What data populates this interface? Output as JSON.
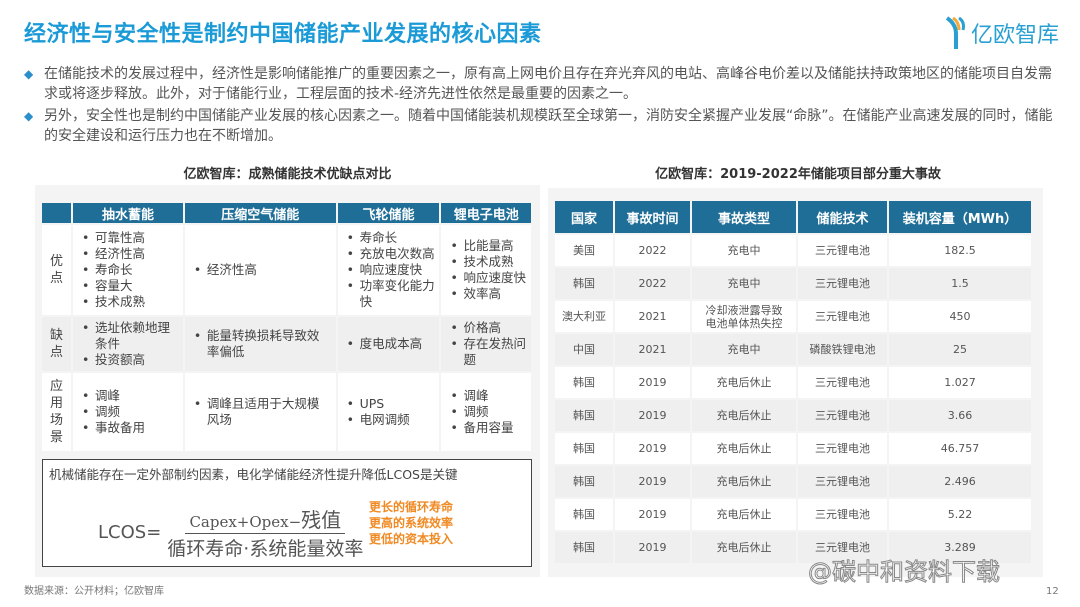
{
  "title": "经济性与安全性是制约中国储能产业发展的核心因素",
  "logo": "亿欧智库",
  "bullets": [
    "在储能技术的发展过程中，经济性是影响储能推广的重要因素之一，原有高上网电价且存在弃光弃风的电站、高峰谷电价差以及储能扶持政策地区的储能项目自发需求或将逐步释放。此外，对于储能行业，工程层面的技术-经济先进性依然是最重要的因素之一。",
    "另外，安全性也是制约中国储能产业发展的核心因素之一。随着中国储能装机规模跃至全球第一，消防安全紧握产业发展“命脉”。在储能产业高速发展的同时，储能的安全建设和运行压力也在不断增加。"
  ],
  "left": {
    "subtitle": "亿欧智库：成熟储能技术优缺点对比",
    "headers": [
      "",
      "抽水蓄能",
      "压缩空气储能",
      "飞轮储能",
      "锂电子电池"
    ],
    "rows": [
      {
        "label": "优点",
        "cells": [
          [
            "可靠性高",
            "经济性高",
            "寿命长",
            "容量大",
            "技术成熟"
          ],
          [
            "经济性高"
          ],
          [
            "寿命长",
            "充放电次数高",
            "响应速度快",
            "功率变化能力快"
          ],
          [
            "比能量高",
            "技术成熟",
            "响应速度快",
            "效率高"
          ]
        ]
      },
      {
        "label": "缺点",
        "cells": [
          [
            "选址依赖地理条件",
            "投资额高"
          ],
          [
            "能量转换损耗导致效率偏低"
          ],
          [
            "度电成本高"
          ],
          [
            "价格高",
            "存在发热问题"
          ]
        ]
      },
      {
        "label": "应用场景",
        "cells": [
          [
            "调峰",
            "调频",
            "事故备用"
          ],
          [
            "调峰且适用于大规模风场"
          ],
          [
            "UPS",
            "电网调频"
          ],
          [
            "调峰",
            "调频",
            "备用容量"
          ]
        ]
      }
    ],
    "note": "机械储能存在一定外部制约因素，电化学储能经济性提升降低LCOS是关键",
    "formula": {
      "lhs": "LCOS=",
      "num_a": "Capex+Opex−",
      "num_b": "残值",
      "den": "循环寿命·系统能量效率"
    },
    "drivers": [
      "更长的循环寿命",
      "更高的系统效率",
      "更低的资本投入"
    ]
  },
  "right": {
    "subtitle": "亿欧智库：2019-2022年储能项目部分重大事故",
    "headers": [
      "国家",
      "事故时间",
      "事故类型",
      "储能技术",
      "装机容量（MWh）"
    ],
    "rows": [
      [
        "美国",
        "2022",
        "充电中",
        "三元锂电池",
        "182.5"
      ],
      [
        "韩国",
        "2022",
        "充电中",
        "三元锂电池",
        "1.5"
      ],
      [
        "澳大利亚",
        "2021",
        "冷却液泄露导致电池单体热失控",
        "三元锂电池",
        "450"
      ],
      [
        "中国",
        "2021",
        "充电中",
        "磷酸铁锂电池",
        "25"
      ],
      [
        "韩国",
        "2019",
        "充电后休止",
        "三元锂电池",
        "1.027"
      ],
      [
        "韩国",
        "2019",
        "充电后休止",
        "三元锂电池",
        "3.66"
      ],
      [
        "韩国",
        "2019",
        "充电后休止",
        "三元锂电池",
        "46.757"
      ],
      [
        "韩国",
        "2019",
        "充电后休止",
        "三元锂电池",
        "2.496"
      ],
      [
        "韩国",
        "2019",
        "充电后休止",
        "三元锂电池",
        "5.22"
      ],
      [
        "韩国",
        "2019",
        "充电后休止",
        "三元锂电池",
        "3.289"
      ]
    ]
  },
  "source": "数据来源：公开材料；亿欧智库",
  "page": "12",
  "watermark": "@碳中和资料下载",
  "colors": {
    "title": "#1a9ad6",
    "header": "#1f6e97",
    "accent": "#f08a24"
  }
}
